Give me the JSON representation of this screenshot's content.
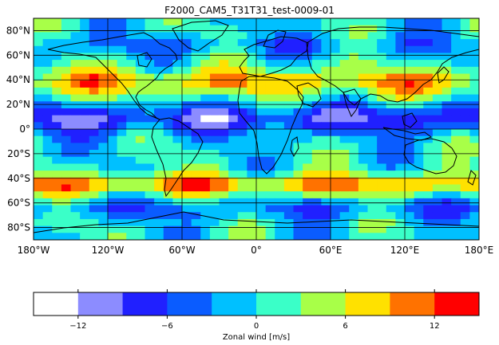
{
  "title": "F2000_CAM5_T31T31_test-0009-01",
  "map": {
    "lon_ticks": [
      "180°W",
      "120°W",
      "60°W",
      "0°",
      "60°E",
      "120°E",
      "180°E"
    ],
    "lat_ticks": [
      "80°N",
      "60°N",
      "40°N",
      "20°N",
      "0°",
      "20°S",
      "40°S",
      "60°S",
      "80°S"
    ],
    "lon_range": [
      -180,
      180
    ],
    "lat_range": [
      -90,
      90
    ],
    "gridlines": true
  },
  "colorbar": {
    "label": "Zonal wind [m/s]",
    "tick_labels": [
      "−12",
      "−6",
      "0",
      "6",
      "12"
    ],
    "tick_values": [
      -12,
      -6,
      0,
      6,
      12
    ],
    "range": [
      -15,
      15
    ],
    "levels": [
      -15,
      -12,
      -9,
      -6,
      -3,
      0,
      3,
      6,
      9,
      12,
      15
    ],
    "colors": [
      "#ffffff",
      "#8c8cff",
      "#2020ff",
      "#0a5cff",
      "#00c0ff",
      "#3affc8",
      "#a8ff48",
      "#ffe100",
      "#ff7200",
      "#ff0000"
    ]
  }
}
